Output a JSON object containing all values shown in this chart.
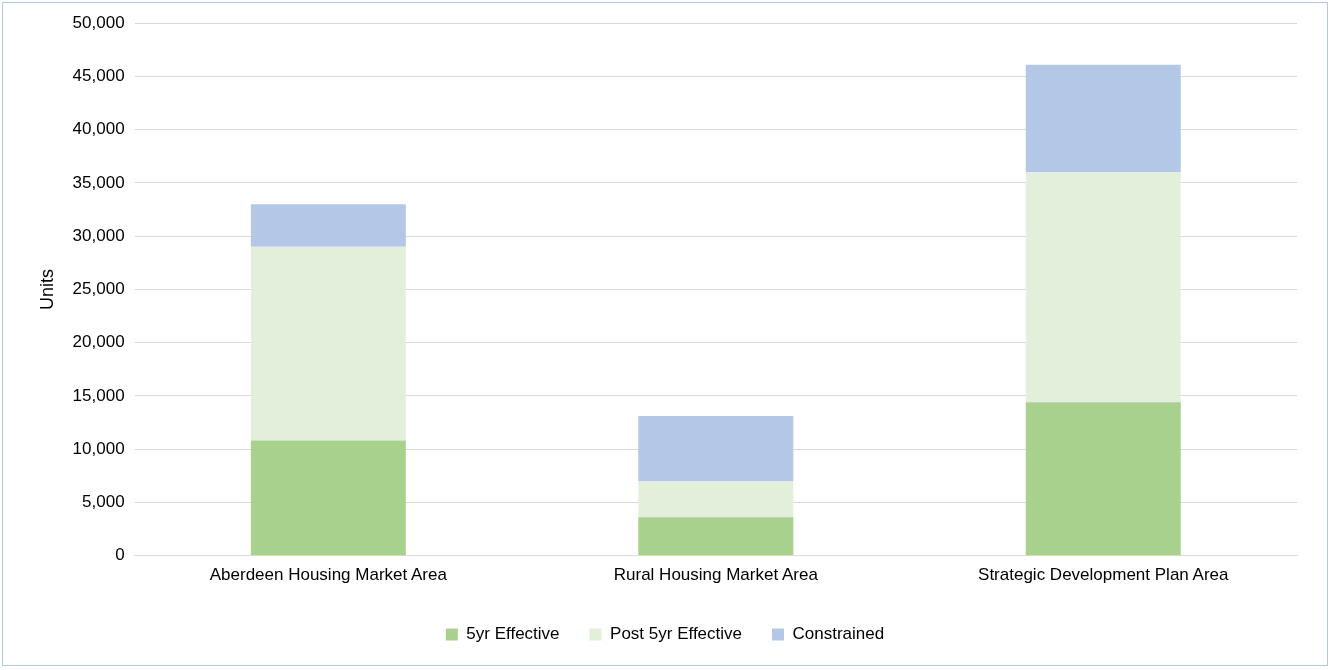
{
  "chart_data": {
    "type": "bar",
    "stacked": true,
    "ylabel": "Units",
    "categories": [
      "Aberdeen Housing Market Area",
      "Rural Housing Market Area",
      "Strategic Development Plan Area"
    ],
    "series": [
      {
        "name": "5yr Effective",
        "color": "#a9d18e",
        "values": [
          10800,
          3600,
          14400
        ]
      },
      {
        "name": "Post 5yr Effective",
        "color": "#e2efda",
        "values": [
          18200,
          3400,
          21600
        ]
      },
      {
        "name": "Constrained",
        "color": "#b4c7e7",
        "values": [
          4000,
          6100,
          10100
        ]
      }
    ],
    "ylim": [
      0,
      50000
    ],
    "yticks": [
      {
        "value": 0,
        "label": "0"
      },
      {
        "value": 5000,
        "label": "5,000"
      },
      {
        "value": 10000,
        "label": "10,000"
      },
      {
        "value": 15000,
        "label": "15,000"
      },
      {
        "value": 20000,
        "label": "20,000"
      },
      {
        "value": 25000,
        "label": "25,000"
      },
      {
        "value": 30000,
        "label": "30,000"
      },
      {
        "value": 35000,
        "label": "35,000"
      },
      {
        "value": 40000,
        "label": "40,000"
      },
      {
        "value": 45000,
        "label": "45,000"
      },
      {
        "value": 50000,
        "label": "50,000"
      }
    ],
    "grid": "y",
    "legend": "bottom"
  }
}
